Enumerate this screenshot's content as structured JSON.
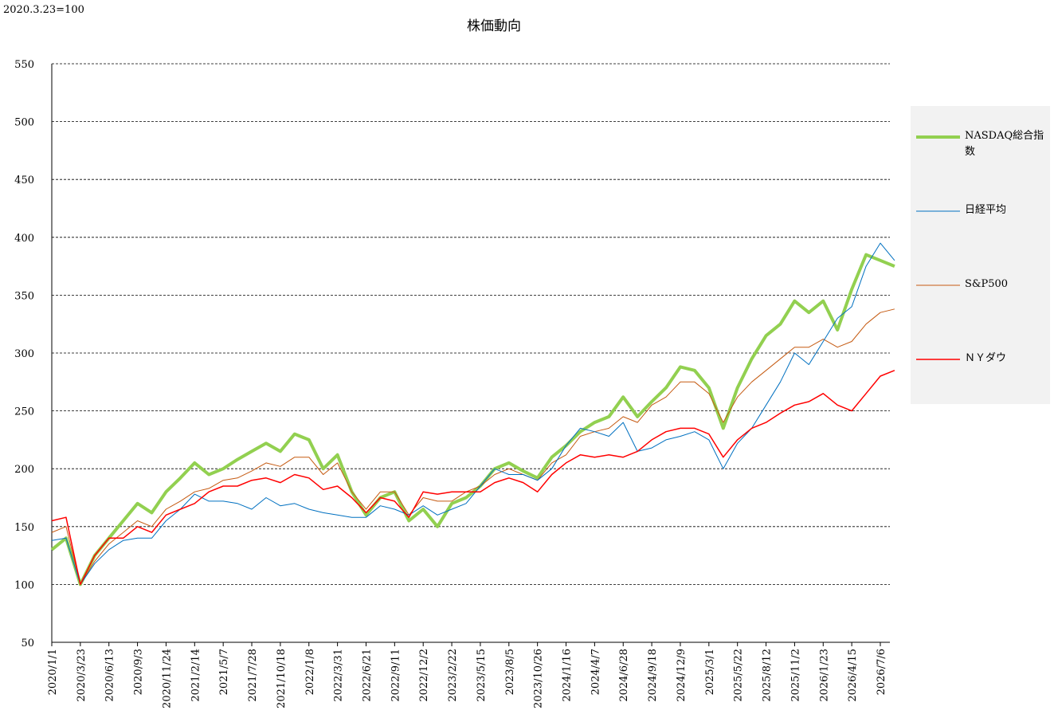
{
  "chart_data": {
    "type": "line",
    "title": "株価動向",
    "annotation": "2020.3.23=100",
    "categories": [
      "2020/1/1",
      null,
      "2020/3/23",
      null,
      "2020/6/13",
      null,
      "2020/9/3",
      null,
      "2020/11/24",
      null,
      "2021/2/14",
      null,
      "2021/5/7",
      null,
      "2021/7/28",
      null,
      "2021/10/18",
      null,
      "2022/1/8",
      null,
      "2022/3/31",
      null,
      "2022/6/21",
      null,
      "2022/9/11",
      null,
      "2022/12/2",
      null,
      "2023/2/22",
      null,
      "2023/5/15",
      null,
      "2023/8/5",
      null,
      "2023/10/26",
      null,
      "2024/1/16",
      null,
      "2024/4/7",
      null,
      "2024/6/28",
      null,
      "2024/9/18",
      null,
      "2024/12/9",
      null,
      "2025/3/1",
      null,
      "2025/5/22",
      null,
      "2025/8/12",
      null,
      "2025/11/2",
      null,
      "2026/1/23",
      null,
      "2026/4/15",
      null,
      "2026/7/6",
      null
    ],
    "series": [
      {
        "name": "NASDAQ総合指数",
        "color": "#92d050",
        "width": 4,
        "values": [
          130,
          140,
          100,
          125,
          140,
          155,
          170,
          162,
          180,
          192,
          205,
          195,
          200,
          208,
          215,
          222,
          215,
          230,
          225,
          200,
          212,
          180,
          160,
          175,
          180,
          155,
          165,
          150,
          170,
          175,
          185,
          200,
          205,
          198,
          192,
          210,
          220,
          232,
          240,
          245,
          262,
          245,
          258,
          270,
          288,
          285,
          270,
          235,
          270,
          295,
          315,
          325,
          345,
          335,
          345,
          320,
          355,
          385,
          380,
          375
        ]
      },
      {
        "name": "日経平均",
        "color": "#0070c0",
        "width": 1,
        "values": [
          138,
          140,
          100,
          118,
          130,
          138,
          140,
          140,
          155,
          165,
          178,
          172,
          172,
          170,
          165,
          175,
          168,
          170,
          165,
          162,
          160,
          158,
          158,
          168,
          165,
          160,
          168,
          160,
          165,
          170,
          185,
          200,
          195,
          195,
          190,
          200,
          220,
          235,
          232,
          228,
          240,
          215,
          218,
          225,
          228,
          232,
          225,
          200,
          222,
          235,
          255,
          275,
          300,
          290,
          310,
          330,
          340,
          375,
          395,
          380
        ]
      },
      {
        "name": "S&P500",
        "color": "#c55a11",
        "width": 1,
        "values": [
          145,
          150,
          100,
          120,
          135,
          145,
          155,
          150,
          165,
          172,
          180,
          183,
          190,
          192,
          198,
          205,
          202,
          210,
          210,
          195,
          205,
          180,
          165,
          180,
          180,
          160,
          175,
          172,
          172,
          180,
          185,
          195,
          200,
          195,
          190,
          205,
          212,
          228,
          232,
          235,
          245,
          240,
          255,
          262,
          275,
          275,
          265,
          240,
          262,
          275,
          285,
          295,
          305,
          305,
          312,
          305,
          310,
          325,
          335,
          338
        ]
      },
      {
        "name": "ＮＹダウ",
        "color": "#ff0000",
        "width": 1.5,
        "values": [
          155,
          158,
          100,
          125,
          140,
          140,
          150,
          145,
          160,
          165,
          170,
          180,
          185,
          185,
          190,
          192,
          188,
          195,
          192,
          182,
          185,
          175,
          162,
          175,
          172,
          158,
          180,
          178,
          180,
          180,
          180,
          188,
          192,
          188,
          180,
          195,
          205,
          212,
          210,
          212,
          210,
          215,
          225,
          232,
          235,
          235,
          230,
          210,
          225,
          235,
          240,
          248,
          255,
          258,
          265,
          255,
          250,
          265,
          280,
          285
        ]
      }
    ],
    "ylim": [
      50,
      550
    ],
    "yticks": [
      50,
      100,
      150,
      200,
      250,
      300,
      350,
      400,
      450,
      500,
      550
    ],
    "grid": true,
    "legend": "right"
  }
}
